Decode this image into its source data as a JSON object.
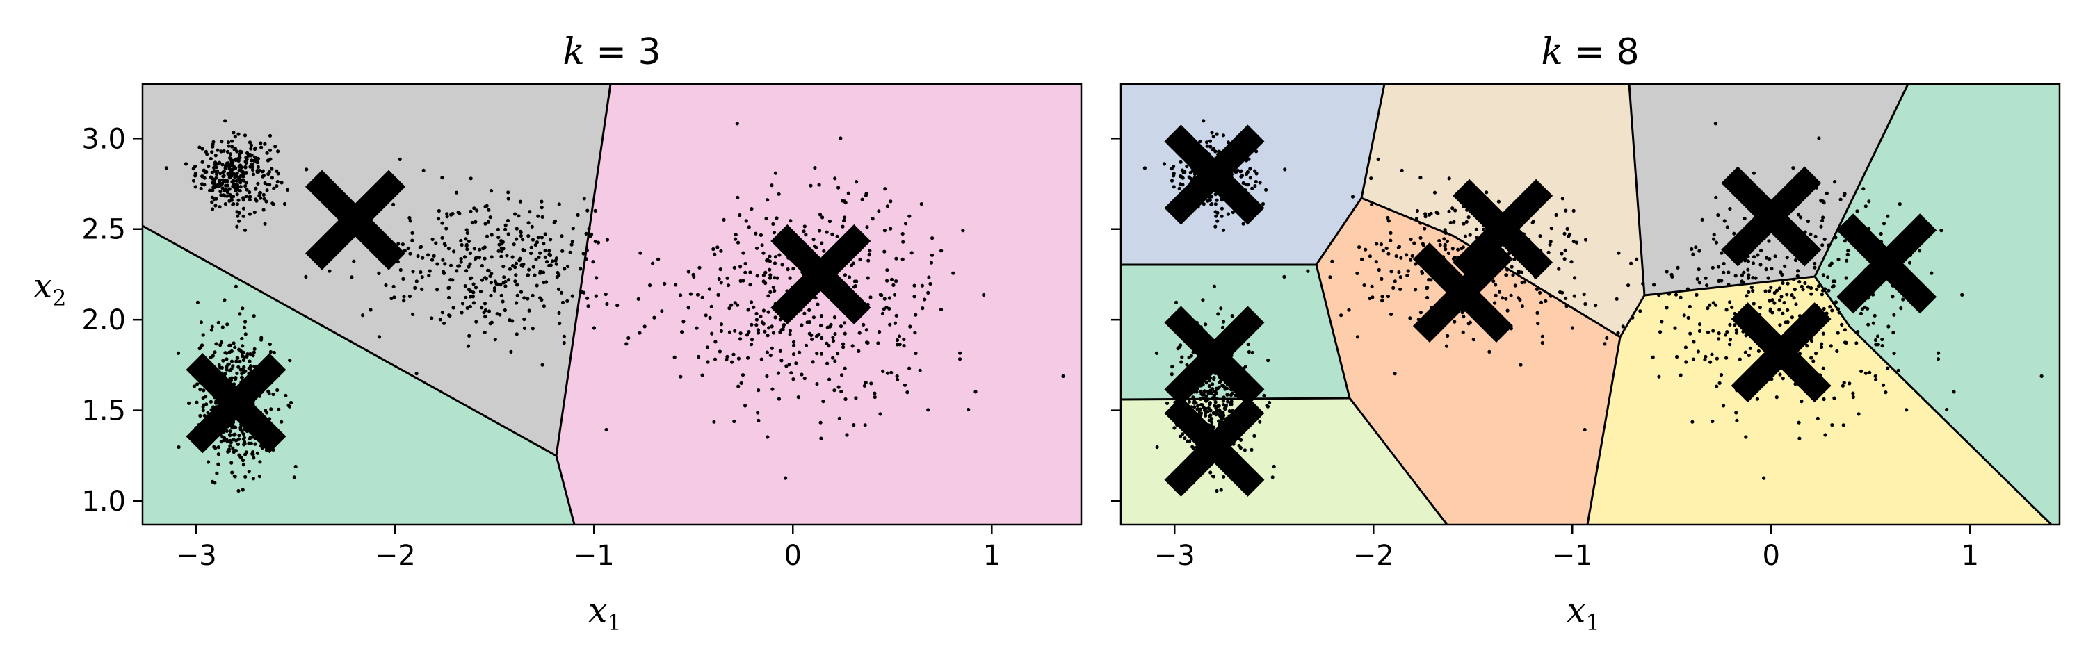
{
  "colors": {
    "point": "#000000",
    "centroid": "#000000",
    "boundary": "#000000",
    "region_palette": [
      "#cbd6e8",
      "#fdcdac",
      "#b3e2cd",
      "#f4cae4",
      "#e6f5c9",
      "#fff2ae",
      "#f1e2cc",
      "#cccccc"
    ]
  },
  "chart_data": [
    {
      "type": "scatter",
      "title": "k = 3",
      "title_var": "k",
      "title_value": "= 3",
      "xlabel": "x",
      "xlabel_sub": "1",
      "ylabel": "x",
      "ylabel_sub": "2",
      "xlim": [
        -3.27,
        1.45
      ],
      "ylim": [
        0.87,
        3.3
      ],
      "xticks": [
        -3,
        -2,
        -1,
        0,
        1
      ],
      "xtick_labels": [
        "−3",
        "−2",
        "−1",
        "0",
        "1"
      ],
      "yticks": [
        1.0,
        1.5,
        2.0,
        2.5,
        3.0
      ],
      "ytick_labels": [
        "1.0",
        "1.5",
        "2.0",
        "2.5",
        "3.0"
      ],
      "show_yticklabels": true,
      "grid": false,
      "centroids": [
        [
          -2.8,
          1.54
        ],
        [
          -2.2,
          2.55
        ],
        [
          0.14,
          2.25
        ]
      ],
      "region_colors": [
        "#b3e2cd",
        "#cccccc",
        "#f4cae4"
      ],
      "point_clusters": [
        {
          "center": [
            -2.8,
            2.8
          ],
          "spread": [
            0.1,
            0.1
          ],
          "count": 300
        },
        {
          "center": [
            -2.8,
            1.55
          ],
          "spread": [
            0.1,
            0.2
          ],
          "count": 450
        },
        {
          "center": [
            -1.5,
            2.3
          ],
          "spread": [
            0.3,
            0.2
          ],
          "count": 350
        },
        {
          "center": [
            0.1,
            2.1
          ],
          "spread": [
            0.35,
            0.3
          ],
          "count": 450
        }
      ]
    },
    {
      "type": "scatter",
      "title": "k = 8",
      "title_var": "k",
      "title_value": "= 8",
      "xlabel": "x",
      "xlabel_sub": "1",
      "ylabel": "",
      "ylabel_sub": "",
      "xlim": [
        -3.27,
        1.45
      ],
      "ylim": [
        0.87,
        3.3
      ],
      "xticks": [
        -3,
        -2,
        -1,
        0,
        1
      ],
      "xtick_labels": [
        "−3",
        "−2",
        "−1",
        "0",
        "1"
      ],
      "yticks": [
        1.0,
        1.5,
        2.0,
        2.5,
        3.0
      ],
      "ytick_labels": [],
      "show_yticklabels": false,
      "grid": false,
      "centroids": [
        [
          -2.8,
          2.8
        ],
        [
          -2.8,
          1.8
        ],
        [
          -2.8,
          1.3
        ],
        [
          -1.55,
          2.15
        ],
        [
          -1.35,
          2.5
        ],
        [
          -0.0,
          2.57
        ],
        [
          0.58,
          2.31
        ],
        [
          0.05,
          1.82
        ]
      ],
      "region_colors": [
        "#cbd6e8",
        "#b3e2cd",
        "#e6f5c9",
        "#fdcdac",
        "#f1e2cc",
        "#cccccc",
        "#b3e2cd",
        "#fff2ae"
      ],
      "point_clusters": [
        {
          "center": [
            -2.8,
            2.8
          ],
          "spread": [
            0.1,
            0.1
          ],
          "count": 300
        },
        {
          "center": [
            -2.8,
            1.55
          ],
          "spread": [
            0.1,
            0.2
          ],
          "count": 450
        },
        {
          "center": [
            -1.5,
            2.3
          ],
          "spread": [
            0.3,
            0.2
          ],
          "count": 350
        },
        {
          "center": [
            0.1,
            2.1
          ],
          "spread": [
            0.35,
            0.3
          ],
          "count": 450
        }
      ]
    }
  ]
}
